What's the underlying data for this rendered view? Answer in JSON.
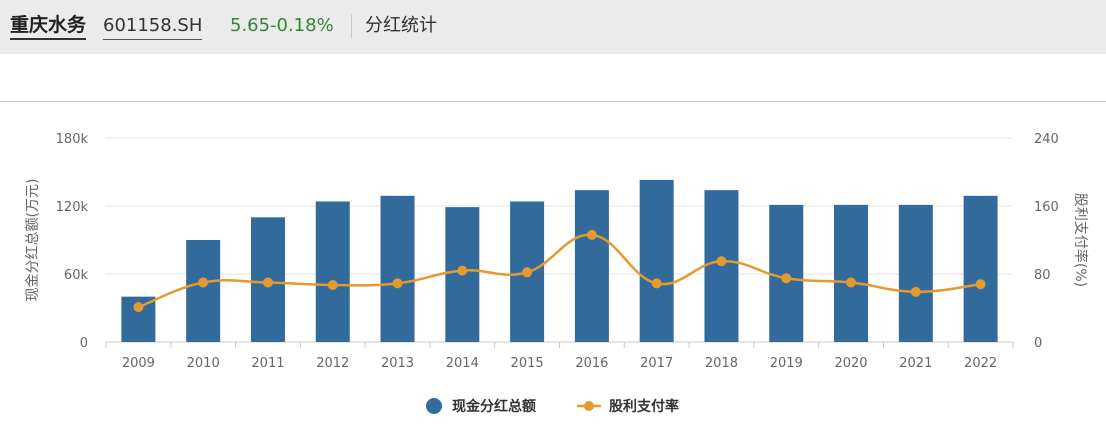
{
  "header": {
    "name": "重庆水务",
    "code": "601158.SH",
    "price": "5.65",
    "change": "-0.18%",
    "title": "分红统计"
  },
  "colors": {
    "bar": "#336a9c",
    "line": "#e39a2e",
    "up_down": "#2f8a2f"
  },
  "chart_data": {
    "type": "bar",
    "categories": [
      "2009",
      "2010",
      "2011",
      "2012",
      "2013",
      "2014",
      "2015",
      "2016",
      "2017",
      "2018",
      "2019",
      "2020",
      "2021",
      "2022"
    ],
    "series": [
      {
        "name": "现金分红总额",
        "type": "bar",
        "axis": "left",
        "values": [
          40000,
          90000,
          110000,
          124000,
          129000,
          119000,
          124000,
          134000,
          143000,
          134000,
          121000,
          121000,
          121000,
          129000
        ]
      },
      {
        "name": "股利支付率",
        "type": "line",
        "axis": "right",
        "values": [
          41,
          70,
          70,
          67,
          69,
          84,
          82,
          126,
          69,
          95,
          75,
          70,
          59,
          68
        ]
      }
    ],
    "ylabel": "现金分红总额(万元)",
    "y2label": "股利支付率(%)",
    "ylim": [
      0,
      180000
    ],
    "y2lim": [
      0,
      240
    ],
    "yticks": [
      "0",
      "60k",
      "120k",
      "180k"
    ],
    "y2ticks": [
      "0",
      "80",
      "160",
      "240"
    ],
    "grid": true,
    "legend": "bottom"
  }
}
